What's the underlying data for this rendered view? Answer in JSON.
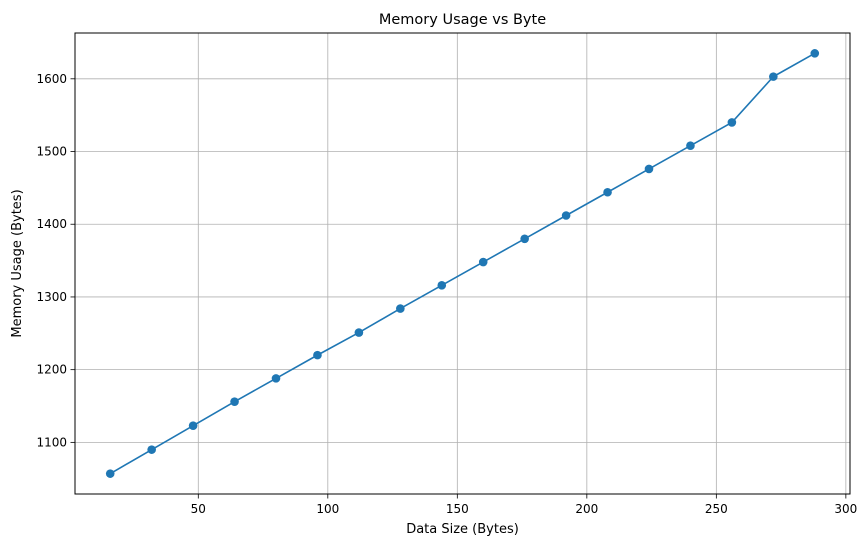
{
  "chart_data": {
    "type": "line",
    "title": "Memory Usage vs Byte",
    "xlabel": "Data Size (Bytes)",
    "ylabel": "Memory Usage (Bytes)",
    "xlim": [
      2.4,
      301.6
    ],
    "ylim": [
      1029,
      1663
    ],
    "xticks": [
      50,
      100,
      150,
      200,
      250,
      300
    ],
    "yticks": [
      1100,
      1200,
      1300,
      1400,
      1500,
      1600
    ],
    "grid": true,
    "markers": true,
    "color": "#1f77b4",
    "grid_color": "#b0b0b0",
    "series": [
      {
        "x": [
          16,
          32,
          48,
          64,
          80,
          96,
          112,
          128,
          144,
          160,
          176,
          192,
          208,
          224,
          240,
          256,
          272,
          288
        ],
        "y": [
          1057,
          1090,
          1123,
          1156,
          1188,
          1220,
          1251,
          1284,
          1316,
          1348,
          1380,
          1412,
          1444,
          1476,
          1508,
          1540,
          1603,
          1635
        ]
      }
    ]
  }
}
